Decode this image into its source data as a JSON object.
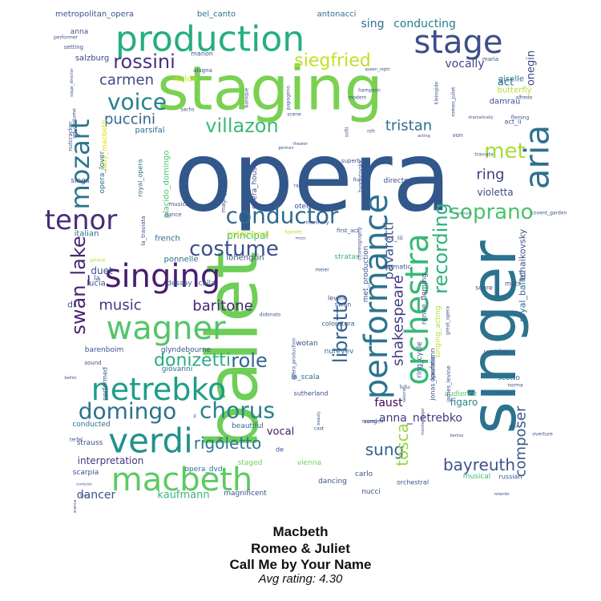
{
  "words": [
    {
      "text": "opera",
      "color": "#31578b",
      "size": 120,
      "rot": 0
    },
    {
      "text": "staging",
      "color": "#7ad151",
      "size": 76,
      "rot": 0
    },
    {
      "text": "ballet",
      "color": "#6ece58",
      "size": 88,
      "rot": 90
    },
    {
      "text": "singer",
      "color": "#2c728e",
      "size": 78,
      "rot": 90
    },
    {
      "text": "production",
      "color": "#27ad81",
      "size": 44,
      "rot": 0
    },
    {
      "text": "performance",
      "color": "#2c738e",
      "size": 40,
      "rot": 90
    },
    {
      "text": "orchestra",
      "color": "#38b977",
      "size": 40,
      "rot": 90
    },
    {
      "text": "stage",
      "color": "#3d4e8a",
      "size": 40,
      "rot": 0
    },
    {
      "text": "aria",
      "color": "#2c728e",
      "size": 42,
      "rot": 90
    },
    {
      "text": "verdi",
      "color": "#21918c",
      "size": 42,
      "rot": 0
    },
    {
      "text": "macbeth",
      "color": "#5ec962",
      "size": 40,
      "rot": 0
    },
    {
      "text": "singing",
      "color": "#481d6f",
      "size": 40,
      "rot": 0
    },
    {
      "text": "wagner",
      "color": "#52c569",
      "size": 40,
      "rot": 0
    },
    {
      "text": "netrebko",
      "color": "#1e9d89",
      "size": 38,
      "rot": 0
    },
    {
      "text": "tenor",
      "color": "#472c7a",
      "size": 34,
      "rot": 0
    },
    {
      "text": "mozart",
      "color": "#2b758e",
      "size": 32,
      "rot": 90
    },
    {
      "text": "conductor",
      "color": "#30698e",
      "size": 28,
      "rot": 0
    },
    {
      "text": "soprano",
      "color": "#4ac16d",
      "size": 26,
      "rot": 0
    },
    {
      "text": "voice",
      "color": "#26818e",
      "size": 28,
      "rot": 0
    },
    {
      "text": "domingo",
      "color": "#2c728e",
      "size": 28,
      "rot": 0
    },
    {
      "text": "chorus",
      "color": "#26818e",
      "size": 28,
      "rot": 0
    },
    {
      "text": "costume",
      "color": "#3b518b",
      "size": 26,
      "rot": 0
    },
    {
      "text": "villazon",
      "color": "#3aba76",
      "size": 24,
      "rot": 0
    },
    {
      "text": "rossini",
      "color": "#46327e",
      "size": 24,
      "rot": 0
    },
    {
      "text": "siegfried",
      "color": "#c2df23",
      "size": 22,
      "rot": 0
    },
    {
      "text": "libretto",
      "color": "#34618d",
      "size": 24,
      "rot": 90
    },
    {
      "text": "recording",
      "color": "#2db27d",
      "size": 24,
      "rot": 90
    },
    {
      "text": "met",
      "color": "#a8db34",
      "size": 26,
      "rot": 0
    },
    {
      "text": "role",
      "color": "#31668e",
      "size": 24,
      "rot": 0
    },
    {
      "text": "donizetti",
      "color": "#28ae80",
      "size": 22,
      "rot": 0
    },
    {
      "text": "shakespeare",
      "color": "#443a83",
      "size": 18,
      "rot": 90
    },
    {
      "text": "swan_lake",
      "color": "#482374",
      "size": 24,
      "rot": 90
    },
    {
      "text": "puccini",
      "color": "#31668e",
      "size": 18,
      "rot": 0
    },
    {
      "text": "tristan",
      "color": "#2e6e8e",
      "size": 18,
      "rot": 0
    },
    {
      "text": "carmen",
      "color": "#3e4989",
      "size": 18,
      "rot": 0
    },
    {
      "text": "music",
      "color": "#443983",
      "size": 18,
      "rot": 0
    },
    {
      "text": "baritone",
      "color": "#482475",
      "size": 18,
      "rot": 0
    },
    {
      "text": "rigoletto",
      "color": "#2a788e",
      "size": 20,
      "rot": 0
    },
    {
      "text": "sung",
      "color": "#34608d",
      "size": 20,
      "rot": 0
    },
    {
      "text": "bayreuth",
      "color": "#3b528b",
      "size": 20,
      "rot": 0
    },
    {
      "text": "tosca",
      "color": "#95d840",
      "size": 20,
      "rot": 90
    },
    {
      "text": "composer",
      "color": "#38598c",
      "size": 18,
      "rot": 90
    },
    {
      "text": "ring",
      "color": "#424086",
      "size": 18,
      "rot": 0
    },
    {
      "text": "pavarotti",
      "color": "#3a548c",
      "size": 16,
      "rot": 90
    },
    {
      "text": "faust",
      "color": "#440154",
      "size": 14,
      "rot": 0
    },
    {
      "text": "anna_netrebko",
      "color": "#453781",
      "size": 14,
      "rot": 0
    },
    {
      "text": "conducting",
      "color": "#287c8e",
      "size": 14,
      "rot": 0
    },
    {
      "text": "sing",
      "color": "#2e6f8e",
      "size": 14,
      "rot": 0
    },
    {
      "text": "vocally",
      "color": "#404588",
      "size": 14,
      "rot": 0
    },
    {
      "text": "act",
      "color": "#2a768e",
      "size": 13,
      "rot": 0
    },
    {
      "text": "onegin",
      "color": "#3f4788",
      "size": 13,
      "rot": 90
    },
    {
      "text": "violetta",
      "color": "#3e4c8a",
      "size": 12,
      "rot": 0
    },
    {
      "text": "dancer",
      "color": "#3b528b",
      "size": 14,
      "rot": 0
    },
    {
      "text": "kaufmann",
      "color": "#35b779",
      "size": 13,
      "rot": 0
    },
    {
      "text": "interpretation",
      "color": "#453581",
      "size": 12,
      "rot": 0
    },
    {
      "text": "vocal",
      "color": "#481769",
      "size": 13,
      "rot": 0
    },
    {
      "text": "principal",
      "color": "#3fbc73",
      "size": 12,
      "rot": 0
    },
    {
      "text": "duet",
      "color": "#3b528b",
      "size": 12,
      "rot": 0
    },
    {
      "text": "figaro",
      "color": "#26828e",
      "size": 12,
      "rot": 0
    },
    {
      "text": "royal_ballet",
      "color": "#306a8e",
      "size": 11,
      "rot": 90
    },
    {
      "text": "tchaikovsky",
      "color": "#3c4f8a",
      "size": 11,
      "rot": 90
    },
    {
      "text": "metropolitan_opera",
      "color": "#3b528b",
      "size": 10,
      "rot": 0
    },
    {
      "text": "bel_canto",
      "color": "#2e6e8e",
      "size": 10,
      "rot": 0
    },
    {
      "text": "antonacci",
      "color": "#2d708e",
      "size": 10,
      "rot": 0
    },
    {
      "text": "damrau",
      "color": "#3b518b",
      "size": 10,
      "rot": 0
    },
    {
      "text": "giselle",
      "color": "#2c718e",
      "size": 10,
      "rot": 0
    },
    {
      "text": "butterfly",
      "color": "#b5de2b",
      "size": 10,
      "rot": 0
    },
    {
      "text": "salzburg",
      "color": "#3e4a89",
      "size": 10,
      "rot": 0
    },
    {
      "text": "isolde",
      "color": "#cde11d",
      "size": 10,
      "rot": 0
    },
    {
      "text": "parsifal",
      "color": "#2d708e",
      "size": 10,
      "rot": 0
    },
    {
      "text": "traditional",
      "color": "#d0e11c",
      "size": 10,
      "rot": 0
    },
    {
      "text": "italian",
      "color": "#2e6e8e",
      "size": 10,
      "rot": 0
    },
    {
      "text": "french",
      "color": "#2e6e8e",
      "size": 10,
      "rot": 0
    },
    {
      "text": "ponnelle",
      "color": "#2e6e8e",
      "size": 10,
      "rot": 0
    },
    {
      "text": "lohengrin",
      "color": "#3b528b",
      "size": 10,
      "rot": 0
    },
    {
      "text": "lucia",
      "color": "#3b528b",
      "size": 10,
      "rot": 0
    },
    {
      "text": "dessay",
      "color": "#2e6e8e",
      "size": 9,
      "rot": 0
    },
    {
      "text": "calla",
      "color": "#2e6e8e",
      "size": 9,
      "rot": 0
    },
    {
      "text": "barenboim",
      "color": "#3b528b",
      "size": 9,
      "rot": 0
    },
    {
      "text": "glyndebourne",
      "color": "#3b528b",
      "size": 9,
      "rot": 0
    },
    {
      "text": "giovanni",
      "color": "#2e6e8e",
      "size": 9,
      "rot": 0
    },
    {
      "text": "nureyev",
      "color": "#2e6e8e",
      "size": 9,
      "rot": 0
    },
    {
      "text": "wotan",
      "color": "#3b528b",
      "size": 9,
      "rot": 0
    },
    {
      "text": "la_scala",
      "color": "#2e6e8e",
      "size": 9,
      "rot": 0
    },
    {
      "text": "scotto",
      "color": "#2e6e8e",
      "size": 9,
      "rot": 0
    },
    {
      "text": "version",
      "color": "#3b528b",
      "size": 9,
      "rot": 0
    },
    {
      "text": "audience",
      "color": "#52c569",
      "size": 9,
      "rot": 0
    },
    {
      "text": "beautiful",
      "color": "#2e6e8e",
      "size": 9,
      "rot": 0
    },
    {
      "text": "conducted",
      "color": "#2e6e8e",
      "size": 9,
      "rot": 0
    },
    {
      "text": "scarpia",
      "color": "#3b528b",
      "size": 9,
      "rot": 0
    },
    {
      "text": "strauss",
      "color": "#3b528b",
      "size": 9,
      "rot": 0
    },
    {
      "text": "magnificent",
      "color": "#3b528b",
      "size": 9,
      "rot": 0
    },
    {
      "text": "opera_dvd",
      "color": "#2e6e8e",
      "size": 9,
      "rot": 0
    },
    {
      "text": "staged",
      "color": "#6ece58",
      "size": 9,
      "rot": 0
    },
    {
      "text": "vienna",
      "color": "#6ece58",
      "size": 9,
      "rot": 0
    },
    {
      "text": "dancing",
      "color": "#3b528b",
      "size": 9,
      "rot": 0
    },
    {
      "text": "carlo",
      "color": "#3b528b",
      "size": 9,
      "rot": 0
    },
    {
      "text": "nucci",
      "color": "#3b528b",
      "size": 9,
      "rot": 0
    },
    {
      "text": "musical",
      "color": "#35b779",
      "size": 9,
      "rot": 0
    },
    {
      "text": "russian",
      "color": "#3b528b",
      "size": 8,
      "rot": 0
    },
    {
      "text": "orchestral",
      "color": "#3b528b",
      "size": 8,
      "rot": 0
    },
    {
      "text": "otello",
      "color": "#3b528b",
      "size": 9,
      "rot": 0
    },
    {
      "text": "director",
      "color": "#3b528b",
      "size": 9,
      "rot": 0
    },
    {
      "text": "stratas",
      "color": "#35b779",
      "size": 9,
      "rot": 0
    },
    {
      "text": "dramatic",
      "color": "#3b528b",
      "size": 8,
      "rot": 0
    },
    {
      "text": "mets",
      "color": "#3b528b",
      "size": 8,
      "rot": 0
    },
    {
      "text": "score",
      "color": "#3b528b",
      "size": 8,
      "rot": 0
    },
    {
      "text": "levine",
      "color": "#3b528b",
      "size": 8,
      "rot": 0
    },
    {
      "text": "swan",
      "color": "#3b528b",
      "size": 8,
      "rot": 0
    },
    {
      "text": "coloratura",
      "color": "#3b528b",
      "size": 8,
      "rot": 0
    },
    {
      "text": "sutherland",
      "color": "#3b528b",
      "size": 8,
      "rot": 0
    },
    {
      "text": "sings",
      "color": "#3b528b",
      "size": 9,
      "rot": 0
    },
    {
      "text": "manon",
      "color": "#3b528b",
      "size": 8,
      "rot": 0
    },
    {
      "text": "alagna",
      "color": "#3b528b",
      "size": 7,
      "rot": 0
    },
    {
      "text": "maria",
      "color": "#3b528b",
      "size": 7,
      "rot": 0
    },
    {
      "text": "setting",
      "color": "#3b528b",
      "size": 7,
      "rot": 0
    },
    {
      "text": "performer",
      "color": "#3b528b",
      "size": 6,
      "rot": 0
    },
    {
      "text": "queen_night",
      "color": "#3b528b",
      "size": 5,
      "rot": 0
    },
    {
      "text": "modern",
      "color": "#3b528b",
      "size": 6,
      "rot": 0
    },
    {
      "text": "hampson",
      "color": "#3b528b",
      "size": 6,
      "rot": 0
    },
    {
      "text": "baroque",
      "color": "#3b528b",
      "size": 6,
      "rot": 90
    },
    {
      "text": "papageno",
      "color": "#3b528b",
      "size": 6,
      "rot": 90
    },
    {
      "text": "alfredo",
      "color": "#3b528b",
      "size": 6,
      "rot": 0
    },
    {
      "text": "fleming",
      "color": "#3b528b",
      "size": 6,
      "rot": 0
    },
    {
      "text": "sachs",
      "color": "#3b528b",
      "size": 6,
      "rot": 0
    },
    {
      "text": "scene",
      "color": "#3b528b",
      "size": 6,
      "rot": 0
    },
    {
      "text": "roh",
      "color": "#3b528b",
      "size": 6,
      "rot": 0
    },
    {
      "text": "solti",
      "color": "#3b528b",
      "size": 6,
      "rot": 90
    },
    {
      "text": "von",
      "color": "#3b528b",
      "size": 7,
      "rot": 0
    },
    {
      "text": "act_ii",
      "color": "#3b528b",
      "size": 8,
      "rot": 0
    },
    {
      "text": "acting",
      "color": "#3b528b",
      "size": 5,
      "rot": 0
    },
    {
      "text": "superb",
      "color": "#3b528b",
      "size": 7,
      "rot": 0
    },
    {
      "text": "traviata",
      "color": "#3b528b",
      "size": 6,
      "rot": 0
    },
    {
      "text": "covent_garden",
      "color": "#3b528b",
      "size": 6,
      "rot": 0
    },
    {
      "text": "eurotrash",
      "color": "#3b528b",
      "size": 4,
      "rot": 0
    },
    {
      "text": "florez",
      "color": "#3b528b",
      "size": 6,
      "rot": 0
    },
    {
      "text": "ramey",
      "color": "#3b528b",
      "size": 6,
      "rot": 0
    },
    {
      "text": "hvorostovsky",
      "color": "#3b528b",
      "size": 6,
      "rot": 90
    },
    {
      "text": "theater",
      "color": "#3b528b",
      "size": 5,
      "rot": 0
    },
    {
      "text": "kleinsjide",
      "color": "#3b528b",
      "size": 6,
      "rot": 90
    },
    {
      "text": "romeo_juliet",
      "color": "#3b528b",
      "size": 6,
      "rot": 90
    },
    {
      "text": "dramatically",
      "color": "#3b528b",
      "size": 5,
      "rot": 0
    },
    {
      "text": "german",
      "color": "#3b528b",
      "size": 5,
      "rot": 0
    },
    {
      "text": "nutcracker",
      "color": "#3b528b",
      "size": 7,
      "rot": 90
    },
    {
      "text": "set_costume",
      "color": "#3b528b",
      "size": 6,
      "rot": 90
    },
    {
      "text": "stage_director",
      "color": "#3b528b",
      "size": 5,
      "rot": 90
    },
    {
      "text": "lady_macbeth",
      "color": "#d8e219",
      "size": 9,
      "rot": 90
    },
    {
      "text": "opera_lover",
      "color": "#2e6e8e",
      "size": 9,
      "rot": 90
    },
    {
      "text": "royal_opera",
      "color": "#2e6e8e",
      "size": 8,
      "rot": 90
    },
    {
      "text": "placido_domingo",
      "color": "#4ac16d",
      "size": 10,
      "rot": 90
    },
    {
      "text": "magic_flute",
      "color": "#3b528b",
      "size": 7,
      "rot": 90
    },
    {
      "text": "opera_house",
      "color": "#3b528b",
      "size": 9,
      "rot": 90
    },
    {
      "text": "musically",
      "color": "#3b528b",
      "size": 7,
      "rot": 0
    },
    {
      "text": "dance",
      "color": "#3b528b",
      "size": 7,
      "rot": 0
    },
    {
      "text": "prince",
      "color": "#b5de2b",
      "size": 6,
      "rot": 0
    },
    {
      "text": "la_traviata",
      "color": "#3b528b",
      "size": 7,
      "rot": 90
    },
    {
      "text": "hamlet",
      "color": "#b5de2b",
      "size": 6,
      "rot": 0
    },
    {
      "text": "mariinsky",
      "color": "#3b528b",
      "size": 6,
      "rot": 0
    },
    {
      "text": "first_act",
      "color": "#3b528b",
      "size": 7,
      "rot": 0
    },
    {
      "text": "act_iii",
      "color": "#3b528b",
      "size": 8,
      "rot": 0
    },
    {
      "text": "choreography",
      "color": "#3b528b",
      "size": 6,
      "rot": 90
    },
    {
      "text": "met_production",
      "color": "#3b528b",
      "size": 9,
      "rot": 90
    },
    {
      "text": "renee_fleming",
      "color": "#3b528b",
      "size": 9,
      "rot": 90
    },
    {
      "text": "ring_cycle",
      "color": "#3b528b",
      "size": 9,
      "rot": 90
    },
    {
      "text": "jonas_kaufmann",
      "color": "#3b528b",
      "size": 8,
      "rot": 90
    },
    {
      "text": "great_opera",
      "color": "#3b528b",
      "size": 6,
      "rot": 90
    },
    {
      "text": "singing_acting",
      "color": "#b5de2b",
      "size": 9,
      "rot": 90
    },
    {
      "text": "bellini",
      "color": "#3b528b",
      "size": 5,
      "rot": 0
    },
    {
      "text": "sound",
      "color": "#3b528b",
      "size": 7,
      "rot": 0
    },
    {
      "text": "performed",
      "color": "#3b528b",
      "size": 8,
      "rot": 90
    },
    {
      "text": "didonato",
      "color": "#3b528b",
      "size": 6,
      "rot": 0
    },
    {
      "text": "opera_production",
      "color": "#3b528b",
      "size": 6,
      "rot": 90
    },
    {
      "text": "operatic",
      "color": "#3b528b",
      "size": 8,
      "rot": 90
    },
    {
      "text": "james_levine",
      "color": "#3b528b",
      "size": 7,
      "rot": 90
    },
    {
      "text": "lulu",
      "color": "#3b528b",
      "size": 7,
      "rot": 0
    },
    {
      "text": "salome",
      "color": "#3b528b",
      "size": 5,
      "rot": 90
    },
    {
      "text": "beauty",
      "color": "#3b528b",
      "size": 5,
      "rot": 90
    },
    {
      "text": "recorded",
      "color": "#3b528b",
      "size": 6,
      "rot": 0
    },
    {
      "text": "berlioz",
      "color": "#3b528b",
      "size": 5,
      "rot": 0
    },
    {
      "text": "meistersinger",
      "color": "#3b528b",
      "size": 5,
      "rot": 90
    },
    {
      "text": "norma",
      "color": "#3b528b",
      "size": 6,
      "rot": 0
    },
    {
      "text": "overture",
      "color": "#3b528b",
      "size": 6,
      "rot": 0
    },
    {
      "text": "rolando",
      "color": "#3b528b",
      "size": 5,
      "rot": 0
    },
    {
      "text": "cast",
      "color": "#3b528b",
      "size": 6,
      "rot": 0
    },
    {
      "text": "de",
      "color": "#3b528b",
      "size": 8,
      "rot": 0
    },
    {
      "text": "il",
      "color": "#3b528b",
      "size": 6,
      "rot": 0
    },
    {
      "text": "le",
      "color": "#3b528b",
      "size": 6,
      "rot": 0
    },
    {
      "text": "la",
      "color": "#3b528b",
      "size": 9,
      "rot": 0
    },
    {
      "text": "di",
      "color": "#3b528b",
      "size": 11,
      "rot": 0
    },
    {
      "text": "anna",
      "color": "#3b528b",
      "size": 9,
      "rot": 0
    },
    {
      "text": "meier",
      "color": "#3b528b",
      "size": 6,
      "rot": 0
    },
    {
      "text": "sang",
      "color": "#3b528b",
      "size": 7,
      "rot": 0
    },
    {
      "text": "terfel",
      "color": "#3b528b",
      "size": 6,
      "rot": 0
    },
    {
      "text": "conductor",
      "color": "#3b528b",
      "size": 4,
      "rot": 0
    },
    {
      "text": "bocca",
      "color": "#3b528b",
      "size": 4,
      "rot": 0
    },
    {
      "text": "garanca",
      "color": "#3b528b",
      "size": 5,
      "rot": 90
    },
    {
      "text": "pamina",
      "color": "#3b528b",
      "size": 4,
      "rot": 0
    },
    {
      "text": "mesis",
      "color": "#3b528b",
      "size": 4,
      "rot": 0
    },
    {
      "text": "mezzo",
      "color": "#3b528b",
      "size": 4,
      "rot": 0
    }
  ],
  "caption": {
    "line1": "Macbeth",
    "line2": "Romeo & Juliet",
    "line3": "Call Me by Your Name",
    "rating": "Avg rating: 4.30"
  }
}
